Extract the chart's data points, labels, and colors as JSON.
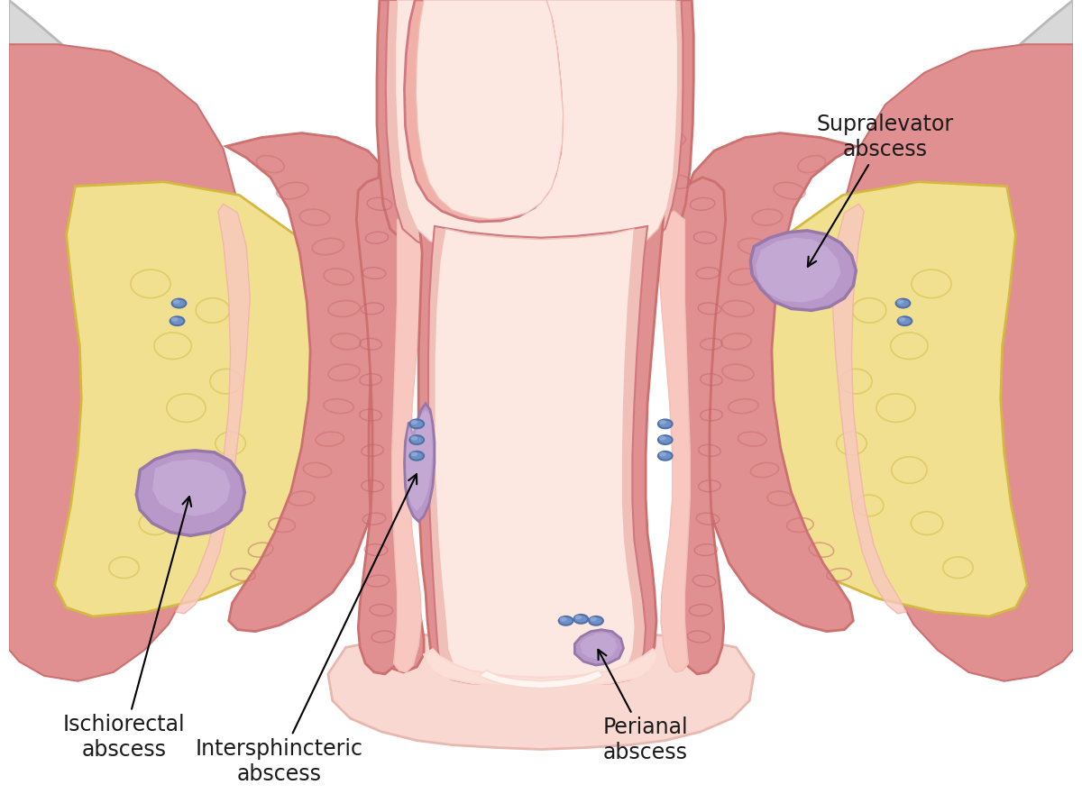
{
  "labels": {
    "ischiorectal": "Ischiorectal\nabscess",
    "intersphincteric": "Intersphincteric\nabscess",
    "perianal": "Perianal\nabscess",
    "supralevator": "Supralevator\nabscess"
  },
  "colors": {
    "white_bg": "#ffffff",
    "bone_light": "#d8d8d8",
    "bone_gray": "#b8b8b8",
    "bone_spots": "#a0a0a0",
    "skin_red": "#e09090",
    "skin_red_dark": "#cc7070",
    "skin_red_light": "#f0b0a8",
    "fat_yellow": "#f0e090",
    "fat_border": "#d4b840",
    "fat_light": "#f8edb8",
    "muscle_dark": "#c06070",
    "muscle_med": "#d07888",
    "muscle_light": "#e898a0",
    "pink_lining": "#f8c8c0",
    "pink_light": "#fce0d8",
    "rectum_wall": "#d07880",
    "rectum_inner": "#f0c0b8",
    "rectum_lumen": "#fce8e0",
    "abscess_purple": "#b898c8",
    "abscess_dark": "#9878a8",
    "abscess_light": "#d0b8e0",
    "blue_vessel": "#7090c8",
    "blue_dark": "#5070a8",
    "blue_light": "#a0b8e0",
    "text_black": "#1a1a1a",
    "pink_floor": "#f8d8d0",
    "pink_floor_dark": "#e8b8b0"
  }
}
